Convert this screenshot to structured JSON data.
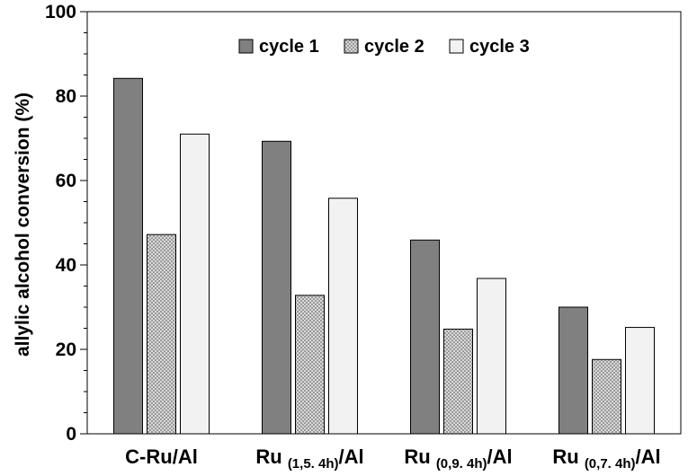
{
  "chart_data": {
    "type": "bar",
    "title": "",
    "xlabel": "",
    "ylabel": "allylic alcohol conversion (%)",
    "ylim": [
      0,
      100
    ],
    "yticks": [
      0,
      20,
      40,
      60,
      80,
      100
    ],
    "grid": false,
    "legend_position": "top-center",
    "categories": [
      {
        "main": "C-Ru/Al",
        "sub": "",
        "suffix": ""
      },
      {
        "main": "Ru ",
        "sub": "(1,5. 4h)",
        "suffix": "/Al"
      },
      {
        "main": "Ru ",
        "sub": "(0,9. 4h)",
        "suffix": "/Al"
      },
      {
        "main": "Ru ",
        "sub": "(0,7. 4h)",
        "suffix": "/Al"
      }
    ],
    "series": [
      {
        "name": "cycle 1",
        "values": [
          84.2,
          69.3,
          45.9,
          30.0
        ],
        "color": "#808080",
        "pattern": "solid"
      },
      {
        "name": "cycle 2",
        "values": [
          47.2,
          32.8,
          24.8,
          17.6
        ],
        "color": "#c8c8c8",
        "pattern": "dotted"
      },
      {
        "name": "cycle 3",
        "values": [
          71.0,
          55.8,
          36.8,
          25.2
        ],
        "color": "#f2f2f2",
        "pattern": "solid"
      }
    ]
  }
}
